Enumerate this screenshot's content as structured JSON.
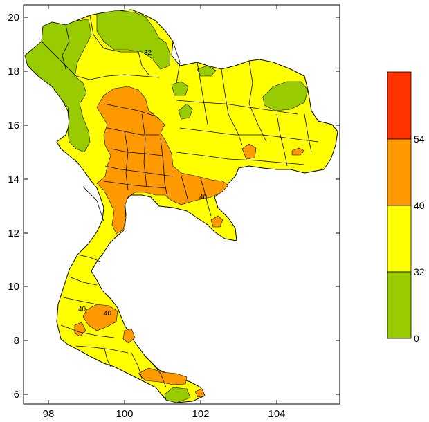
{
  "map": {
    "x_ticks": [
      "98",
      "100",
      "102",
      "104"
    ],
    "y_ticks": [
      "20",
      "18",
      "16",
      "14",
      "12",
      "10",
      "8",
      "6"
    ],
    "contour_labels": [
      "32",
      "40",
      "40",
      "40"
    ]
  },
  "colorbar": {
    "classes": [
      {
        "range": "0-32",
        "color": "#99cc00"
      },
      {
        "range": "32-40",
        "color": "#ffff00"
      },
      {
        "range": "40-54",
        "color": "#ff9900"
      },
      {
        "range": "54+",
        "color": "#ff3300"
      }
    ],
    "tick_labels": [
      "0",
      "32",
      "40",
      "54"
    ]
  },
  "colors": {
    "green": "#99cc00",
    "yellow": "#ffff00",
    "orange": "#ff9900",
    "red": "#ff3300"
  }
}
